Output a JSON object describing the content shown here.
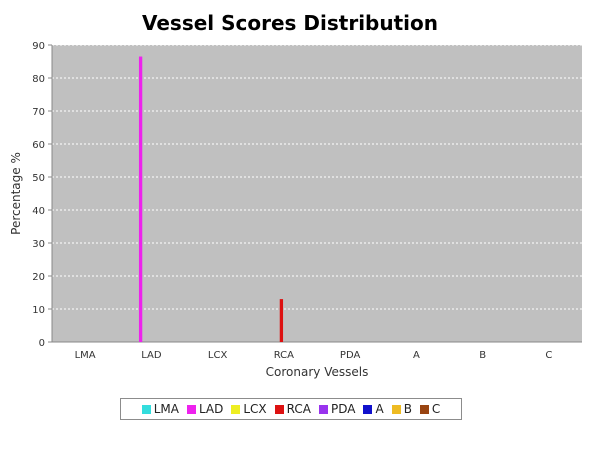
{
  "chart_data": {
    "type": "bar",
    "title": "Vessel Scores Distribution",
    "xlabel": "Coronary Vessels",
    "ylabel": "Percentage %",
    "ylim": [
      0,
      90
    ],
    "yticks": [
      0,
      10,
      20,
      30,
      40,
      50,
      60,
      70,
      80,
      90
    ],
    "categories": [
      "LMA",
      "LAD",
      "LCX",
      "RCA",
      "PDA",
      "A",
      "B",
      "C"
    ],
    "series": [
      {
        "name": "LMA",
        "color": "#33dddd",
        "values": [
          0,
          0,
          0,
          0,
          0,
          0,
          0,
          0
        ]
      },
      {
        "name": "LAD",
        "color": "#ee22ee",
        "values": [
          0,
          86.5,
          0,
          0,
          0,
          0,
          0,
          0
        ]
      },
      {
        "name": "LCX",
        "color": "#eeee22",
        "values": [
          0,
          0,
          0,
          0,
          0,
          0,
          0,
          0
        ]
      },
      {
        "name": "RCA",
        "color": "#dd1111",
        "values": [
          0,
          0,
          0,
          13,
          0,
          0,
          0,
          0
        ]
      },
      {
        "name": "PDA",
        "color": "#9933ee",
        "values": [
          0,
          0,
          0,
          0,
          0,
          0,
          0,
          0
        ]
      },
      {
        "name": "A",
        "color": "#1111cc",
        "values": [
          0,
          0,
          0,
          0,
          0,
          0,
          0,
          0
        ]
      },
      {
        "name": "B",
        "color": "#eebb22",
        "values": [
          0,
          0,
          0,
          0,
          0,
          0,
          0,
          0
        ]
      },
      {
        "name": "C",
        "color": "#994411",
        "values": [
          0,
          0,
          0,
          0,
          0,
          0,
          0,
          0
        ]
      }
    ],
    "grid": true,
    "legend_position": "bottom",
    "plot_background": "#c0c0c0"
  }
}
